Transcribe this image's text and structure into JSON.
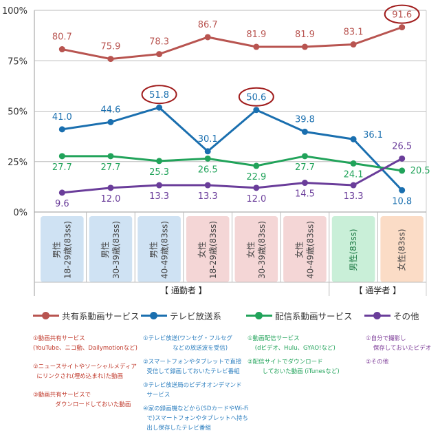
{
  "chart_data": {
    "type": "line",
    "ylim": [
      0,
      100
    ],
    "yticks": [
      "0%",
      "25%",
      "50%",
      "75%",
      "100%"
    ],
    "grid": true,
    "categories": [
      {
        "gender": "男性",
        "age": "18-29歳(83ss)",
        "group": "commuter"
      },
      {
        "gender": "男性",
        "age": "30-39歳(83ss)",
        "group": "commuter"
      },
      {
        "gender": "男性",
        "age": "40-49歳(83ss)",
        "group": "commuter"
      },
      {
        "gender": "女性",
        "age": "18-29歳(83ss)",
        "group": "commuter"
      },
      {
        "gender": "女性",
        "age": "30-39歳(83ss)",
        "group": "commuter"
      },
      {
        "gender": "女性",
        "age": "40-49歳(83ss)",
        "group": "commuter"
      },
      {
        "gender": "男性(83ss)",
        "age": "",
        "group": "student"
      },
      {
        "gender": "女性(83ss)",
        "age": "",
        "group": "student"
      }
    ],
    "category_colors": [
      "#cfe2f3",
      "#cfe2f3",
      "#cfe2f3",
      "#f4d6d6",
      "#f4d6d6",
      "#f4d6d6",
      "#c9efd8",
      "#fbdcc6"
    ],
    "groups": {
      "commuter": "【 通勤者 】",
      "student": "【 通学者 】"
    },
    "series": [
      {
        "name": "共有系動画サービス",
        "color": "#b85450",
        "values": [
          80.7,
          75.9,
          78.3,
          86.7,
          81.9,
          81.9,
          83.1,
          91.6
        ],
        "highlight": [
          7
        ]
      },
      {
        "name": "テレビ放送系",
        "color": "#1a6faf",
        "values": [
          41.0,
          44.6,
          51.8,
          30.1,
          50.6,
          39.8,
          36.1,
          10.8
        ],
        "highlight": [
          2,
          4
        ]
      },
      {
        "name": "配信系動画サービス",
        "color": "#21a35a",
        "values": [
          27.7,
          27.7,
          25.3,
          26.5,
          22.9,
          27.7,
          24.1,
          20.5
        ],
        "highlight": []
      },
      {
        "name": "その他",
        "color": "#6a3d9a",
        "values": [
          9.6,
          12.0,
          13.3,
          13.3,
          12.0,
          14.5,
          13.3,
          26.5
        ],
        "highlight": []
      }
    ],
    "highlight_color": "#a01c1c"
  },
  "notes": [
    {
      "color": "#c0392b",
      "lines": [
        "①動画共有サービス\n(YouTube、ニコ動、Dailymotionなど)",
        "②ニュースサイトやソーシャルメディア\n  にリンクされ(埋め込まれ)た動画",
        "③動画共有サービスで\n            ダウンロードしておいた動画"
      ]
    },
    {
      "color": "#2f80c0",
      "lines": [
        "①テレビ放送(ワンセグ・フルセグ\n                などの放送波を受信)",
        "②スマートフォンやタブレットで直接\n  受信して録画しておいたテレビ番組",
        "③テレビ放送局のビデオオンデマンド\n  サービス",
        "④家の録画機などから(SDカードやWi-Fi\n  で)スマートフォンやタブレットへ持ち\n  出し保存したテレビ番組"
      ]
    },
    {
      "color": "#21a35a",
      "lines": [
        "①動画配信サービス\n    (dビデオ、Hulu、GYAO!など)",
        "②配信サイトでダウンロード\n        しておいた動画 (iTunesなど)"
      ]
    },
    {
      "color": "#7d3c98",
      "lines": [
        "①自分で撮影し\n    保存しておいたビデオ",
        "②その他"
      ]
    }
  ]
}
